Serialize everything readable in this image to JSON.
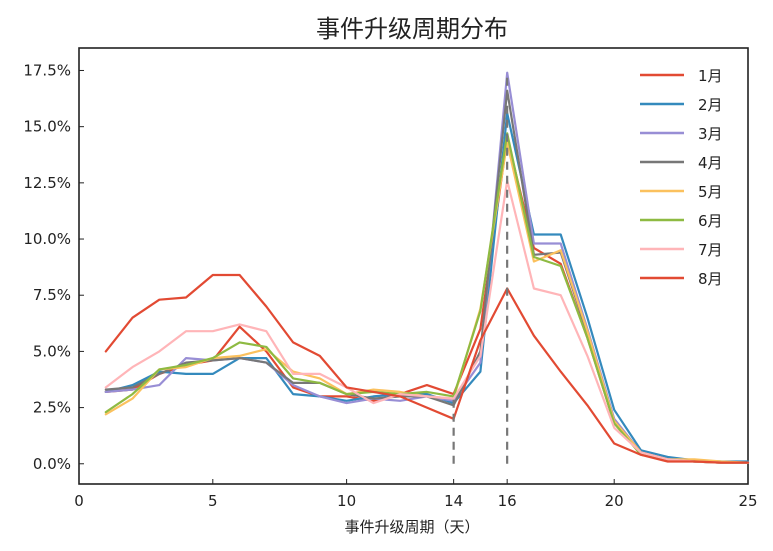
{
  "chart_data": {
    "type": "line",
    "title": "事件升级周期分布",
    "xlabel": "事件升级周期（天）",
    "ylabel": "",
    "xlim": [
      0,
      25
    ],
    "ylim": [
      -0.9,
      18.5
    ],
    "x_ticks": [
      0,
      5,
      10,
      14,
      16,
      20,
      25
    ],
    "y_ticks": [
      0.0,
      2.5,
      5.0,
      7.5,
      10.0,
      12.5,
      15.0,
      17.5
    ],
    "y_tick_labels": [
      "0.0%",
      "2.5%",
      "5.0%",
      "7.5%",
      "10.0%",
      "12.5%",
      "15.0%",
      "17.5%"
    ],
    "grid": false,
    "legend_position": "upper-right",
    "x": [
      1,
      2,
      3,
      4,
      5,
      6,
      7,
      8,
      9,
      10,
      11,
      12,
      13,
      14,
      15,
      16,
      17,
      18,
      19,
      20,
      21,
      22,
      23,
      24,
      25
    ],
    "series": [
      {
        "name": "1月",
        "color": "#e24a33",
        "values": [
          3.2,
          3.3,
          4.0,
          4.4,
          4.6,
          6.1,
          5.0,
          3.4,
          3.0,
          3.0,
          2.8,
          3.1,
          3.5,
          3.1,
          6.0,
          14.5,
          9.6,
          8.9,
          5.6,
          1.8,
          0.5,
          0.2,
          0.1,
          0.05,
          0.05
        ]
      },
      {
        "name": "2月",
        "color": "#348abd",
        "values": [
          3.2,
          3.5,
          4.1,
          4.0,
          4.0,
          4.7,
          4.7,
          3.1,
          3.0,
          2.8,
          3.0,
          3.1,
          3.1,
          2.7,
          4.1,
          15.6,
          10.2,
          10.2,
          6.5,
          2.4,
          0.6,
          0.3,
          0.15,
          0.1,
          0.1
        ]
      },
      {
        "name": "3月",
        "color": "#988ed5",
        "values": [
          3.2,
          3.3,
          3.5,
          4.7,
          4.6,
          4.7,
          4.5,
          3.5,
          3.0,
          2.7,
          2.9,
          2.8,
          3.0,
          2.8,
          4.5,
          17.4,
          9.8,
          9.8,
          6.0,
          2.0,
          0.5,
          0.2,
          0.1,
          0.05,
          0.05
        ]
      },
      {
        "name": "4月",
        "color": "#777777",
        "values": [
          3.3,
          3.4,
          4.0,
          4.5,
          4.6,
          4.7,
          4.5,
          3.6,
          3.6,
          3.1,
          2.9,
          3.0,
          3.0,
          2.6,
          5.0,
          16.6,
          9.3,
          9.4,
          5.8,
          1.9,
          0.5,
          0.2,
          0.1,
          0.05,
          0.05
        ]
      },
      {
        "name": "5月",
        "color": "#fbc15e",
        "values": [
          2.2,
          2.9,
          4.2,
          4.3,
          4.7,
          4.8,
          5.1,
          4.1,
          3.8,
          3.1,
          3.3,
          3.2,
          3.0,
          2.9,
          6.9,
          14.3,
          9.0,
          9.5,
          5.9,
          1.9,
          0.5,
          0.2,
          0.2,
          0.1,
          0.05
        ]
      },
      {
        "name": "6月",
        "color": "#8eba42",
        "values": [
          2.3,
          3.1,
          4.2,
          4.4,
          4.7,
          5.4,
          5.2,
          3.8,
          3.6,
          3.1,
          3.2,
          3.1,
          3.2,
          3.0,
          6.8,
          14.7,
          9.2,
          8.8,
          5.6,
          1.8,
          0.4,
          0.2,
          0.1,
          0.05,
          0.05
        ]
      },
      {
        "name": "7月",
        "color": "#ffb5b8",
        "values": [
          3.4,
          4.3,
          5.0,
          5.9,
          5.9,
          6.2,
          5.9,
          4.0,
          4.0,
          3.4,
          2.7,
          3.1,
          3.0,
          2.9,
          4.8,
          12.6,
          7.8,
          7.5,
          4.8,
          1.6,
          0.5,
          0.2,
          0.1,
          0.05,
          0.05
        ]
      },
      {
        "name": "8月",
        "color": "#e24a33",
        "values": [
          5.0,
          6.5,
          7.3,
          7.4,
          8.4,
          8.4,
          7.0,
          5.4,
          4.8,
          3.4,
          3.2,
          3.0,
          2.5,
          2.0,
          5.5,
          7.8,
          5.7,
          4.1,
          2.6,
          0.9,
          0.4,
          0.1,
          0.1,
          0.05,
          0.05
        ]
      }
    ],
    "vertical_lines": [
      {
        "x": 14,
        "y_from": 0.0,
        "y_to": 3.1,
        "color": "#777777",
        "style": "dashed"
      },
      {
        "x": 16,
        "y_from": 0.0,
        "y_to": 17.4,
        "color": "#777777",
        "style": "dashed"
      }
    ]
  }
}
